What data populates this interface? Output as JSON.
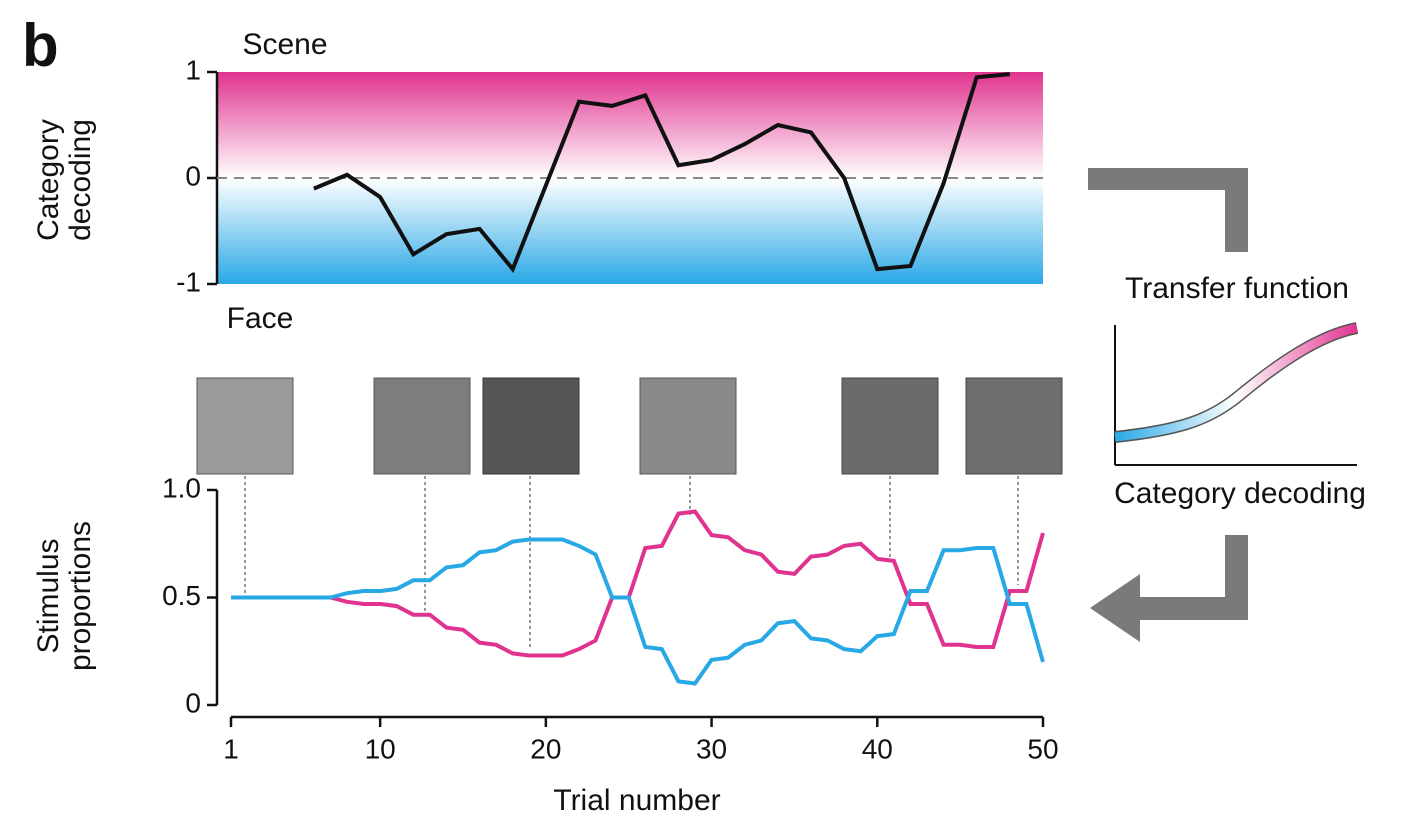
{
  "panel_label": "b",
  "chart_data": [
    {
      "type": "line",
      "ylabel": "Category decoding",
      "annotations": [
        "Scene",
        "Face"
      ],
      "x": [
        6,
        8,
        10,
        12,
        14,
        16,
        18,
        22,
        24,
        26,
        28,
        30,
        32,
        34,
        36,
        38,
        40,
        42,
        44,
        46,
        48
      ],
      "values": [
        -0.1,
        0.03,
        -0.18,
        -0.72,
        -0.53,
        -0.48,
        -0.86,
        0.72,
        0.68,
        0.78,
        0.12,
        0.17,
        0.32,
        0.5,
        0.43,
        0.0,
        -0.86,
        -0.83,
        -0.05,
        0.95,
        0.98
      ],
      "color": "#111111",
      "band_colors": [
        "#e0338f",
        "#29a8e6"
      ],
      "xlim": [
        1,
        50
      ],
      "ylim": [
        -1,
        1
      ],
      "yticks": [
        -1,
        0,
        1
      ]
    },
    {
      "type": "line",
      "ylabel": "Stimulus proportions",
      "xlabel": "Trial number",
      "x": [
        1,
        2,
        3,
        4,
        5,
        6,
        7,
        8,
        9,
        10,
        11,
        12,
        13,
        14,
        15,
        16,
        17,
        18,
        19,
        20,
        21,
        22,
        23,
        24,
        25,
        26,
        27,
        28,
        29,
        30,
        31,
        32,
        33,
        34,
        35,
        36,
        37,
        38,
        39,
        40,
        41,
        42,
        43,
        44,
        45,
        46,
        47,
        48,
        49,
        50
      ],
      "series": [
        {
          "color": "#e0338f",
          "values": [
            0.5,
            0.5,
            0.5,
            0.5,
            0.5,
            0.5,
            0.5,
            0.48,
            0.47,
            0.47,
            0.46,
            0.42,
            0.42,
            0.36,
            0.35,
            0.29,
            0.28,
            0.24,
            0.23,
            0.23,
            0.23,
            0.26,
            0.3,
            0.5,
            0.5,
            0.73,
            0.74,
            0.89,
            0.9,
            0.79,
            0.78,
            0.72,
            0.7,
            0.62,
            0.61,
            0.69,
            0.7,
            0.74,
            0.75,
            0.68,
            0.67,
            0.47,
            0.47,
            0.28,
            0.28,
            0.27,
            0.27,
            0.53,
            0.53,
            0.8
          ]
        },
        {
          "color": "#29a8e6",
          "values": [
            0.5,
            0.5,
            0.5,
            0.5,
            0.5,
            0.5,
            0.5,
            0.52,
            0.53,
            0.53,
            0.54,
            0.58,
            0.58,
            0.64,
            0.65,
            0.71,
            0.72,
            0.76,
            0.77,
            0.77,
            0.77,
            0.74,
            0.7,
            0.5,
            0.5,
            0.27,
            0.26,
            0.11,
            0.1,
            0.21,
            0.22,
            0.28,
            0.3,
            0.38,
            0.39,
            0.31,
            0.3,
            0.26,
            0.25,
            0.32,
            0.33,
            0.53,
            0.53,
            0.72,
            0.72,
            0.73,
            0.73,
            0.47,
            0.47,
            0.2
          ]
        }
      ],
      "xlim": [
        1,
        50
      ],
      "ylim": [
        0,
        1
      ],
      "xticks": [
        1,
        10,
        20,
        30,
        40,
        50
      ],
      "yticks": [
        0,
        0.5,
        {
          "value": 1,
          "label": "1.0"
        }
      ]
    }
  ],
  "transfer_function": {
    "title": "Transfer function",
    "xlabel": "Category decoding"
  }
}
